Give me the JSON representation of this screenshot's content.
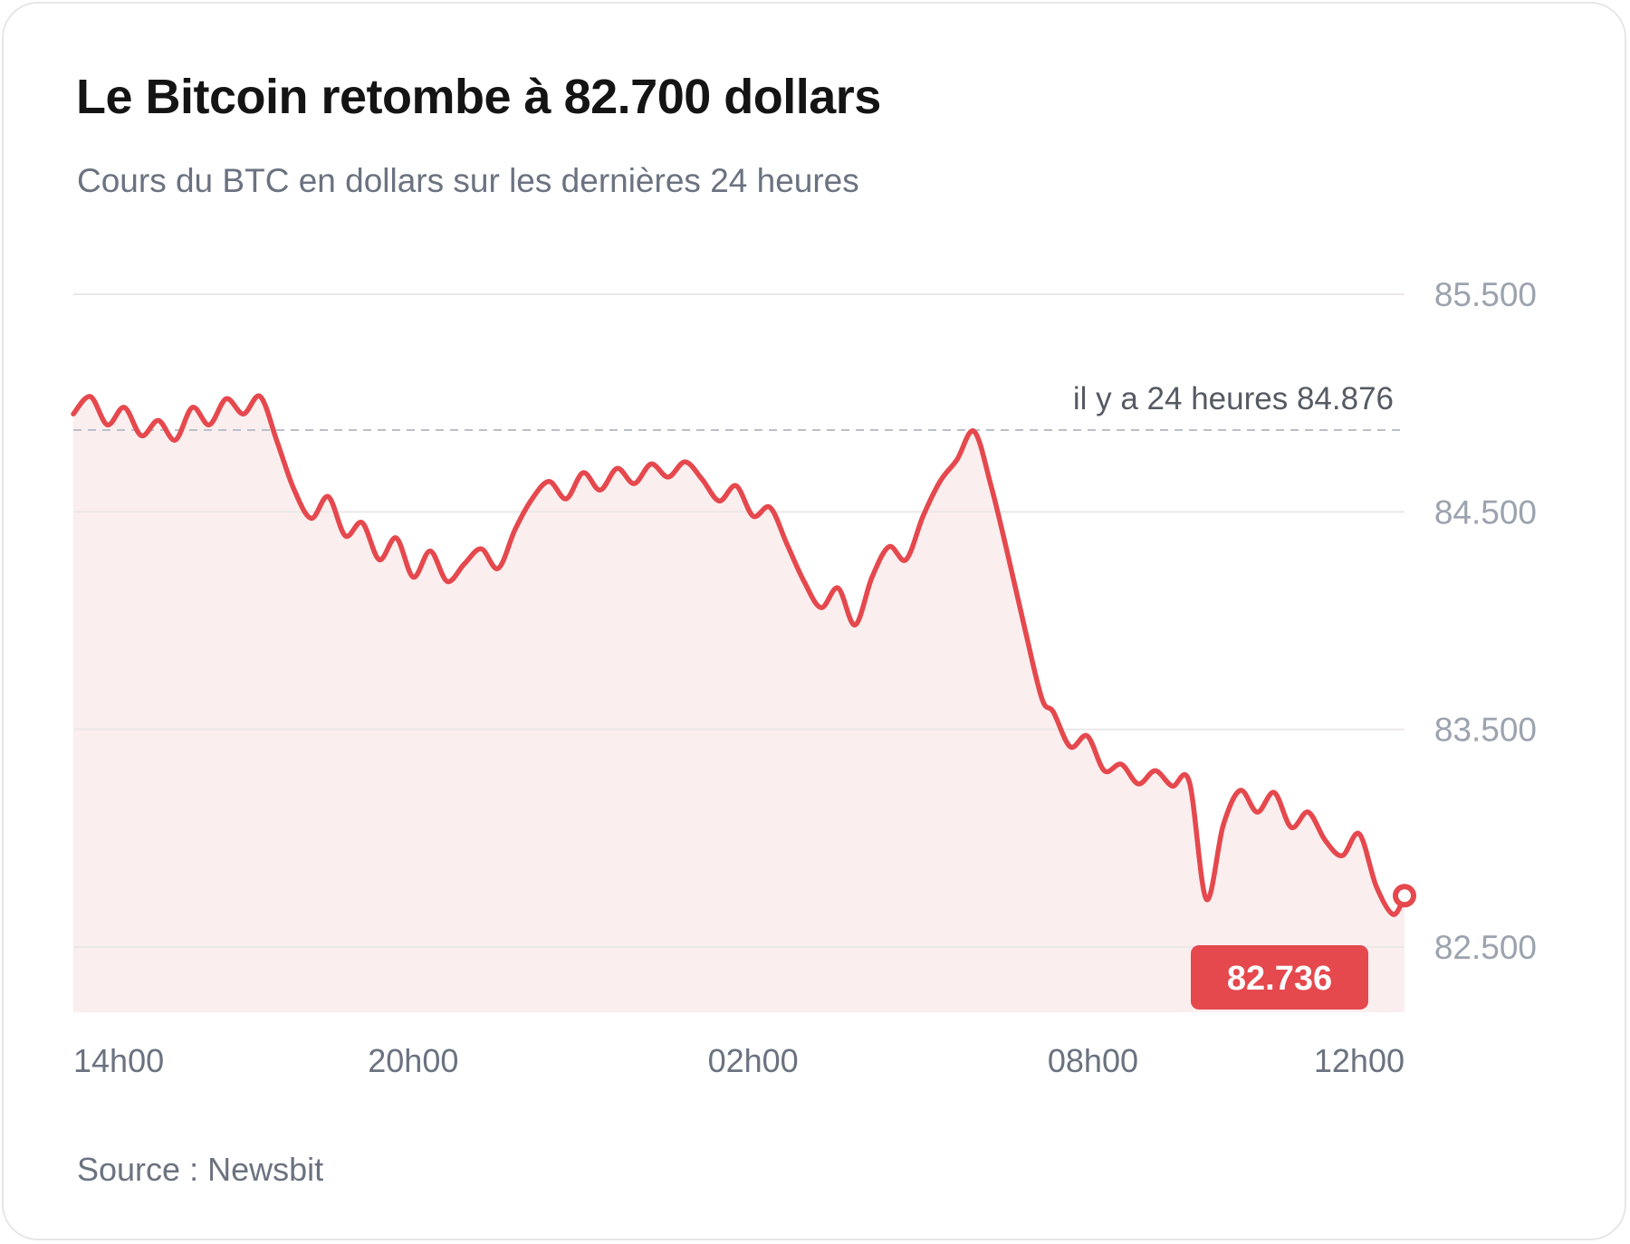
{
  "header": {
    "title": "Le Bitcoin retombe à 82.700 dollars",
    "subtitle": "Cours du BTC en dollars sur les dernières 24 heures"
  },
  "footer": {
    "source_label": "Source :",
    "source_name": "Newsbit"
  },
  "colors": {
    "line": "#e5484d",
    "area_fill": "#fbeeee",
    "gridline": "#ebe7e7",
    "reference_line": "#b9bfca",
    "tick_label": "#9ca3af",
    "x_tick_label": "#6b7280",
    "badge_bg": "#e5484d",
    "badge_text": "#ffffff"
  },
  "chart_data": {
    "type": "area",
    "title": "Le Bitcoin retombe à 82.700 dollars",
    "subtitle": "Cours du BTC en dollars sur les dernières 24 heures",
    "xlabel": "",
    "ylabel": "",
    "x_ticks": [
      {
        "label": "14h00",
        "hour": 0
      },
      {
        "label": "20h00",
        "hour": 6
      },
      {
        "label": "02h00",
        "hour": 12
      },
      {
        "label": "08h00",
        "hour": 18
      },
      {
        "label": "12h00",
        "hour": 22
      }
    ],
    "y_ticks": [
      {
        "label": "85.500",
        "value": 85500
      },
      {
        "label": "84.500",
        "value": 84500
      },
      {
        "label": "83.500",
        "value": 83500
      },
      {
        "label": "82.500",
        "value": 82500
      }
    ],
    "ylim": [
      82200,
      85500
    ],
    "xlim": [
      0,
      23.5
    ],
    "grid": true,
    "reference": {
      "label": "il y a 24 heures 84.876",
      "value": 84876
    },
    "last_value": {
      "label": "82.736",
      "value": 82736
    },
    "series": [
      {
        "x": [
          0,
          0.3,
          0.6,
          0.9,
          1.2,
          1.5,
          1.8,
          2.1,
          2.4,
          2.7,
          3.0,
          3.3,
          3.6,
          3.9,
          4.2,
          4.5,
          4.8,
          5.1,
          5.4,
          5.7,
          6.0,
          6.3,
          6.6,
          6.9,
          7.2,
          7.5,
          7.8,
          8.1,
          8.4,
          8.7,
          9.0,
          9.3,
          9.6,
          9.9,
          10.2,
          10.5,
          10.8,
          11.1,
          11.4,
          11.7,
          12.0,
          12.3,
          12.6,
          12.9,
          13.2,
          13.5,
          13.8,
          14.1,
          14.4,
          14.7,
          15.0,
          15.3,
          15.6,
          15.9,
          16.2,
          16.5,
          16.8,
          17.1,
          17.3,
          17.6,
          17.9,
          18.2,
          18.5,
          18.8,
          19.1,
          19.4,
          19.7,
          20.0,
          20.3,
          20.6,
          20.9,
          21.2,
          21.5,
          21.8,
          22.1,
          22.4,
          22.7,
          23.0,
          23.3,
          23.5
        ],
        "y": [
          84950,
          85030,
          84900,
          84980,
          84850,
          84920,
          84830,
          84980,
          84900,
          85020,
          84950,
          85030,
          84820,
          84600,
          84470,
          84570,
          84390,
          84450,
          84280,
          84380,
          84200,
          84320,
          84180,
          84260,
          84330,
          84240,
          84420,
          84560,
          84640,
          84560,
          84680,
          84600,
          84700,
          84630,
          84720,
          84660,
          84730,
          84650,
          84550,
          84620,
          84480,
          84520,
          84350,
          84180,
          84060,
          84150,
          83980,
          84200,
          84340,
          84280,
          84480,
          84640,
          84740,
          84870,
          84620,
          84300,
          83960,
          83640,
          83580,
          83420,
          83470,
          83310,
          83340,
          83250,
          83310,
          83240,
          83260,
          82720,
          83060,
          83220,
          83120,
          83210,
          83050,
          83120,
          82990,
          82920,
          83020,
          82780,
          82650,
          82736
        ]
      }
    ]
  }
}
